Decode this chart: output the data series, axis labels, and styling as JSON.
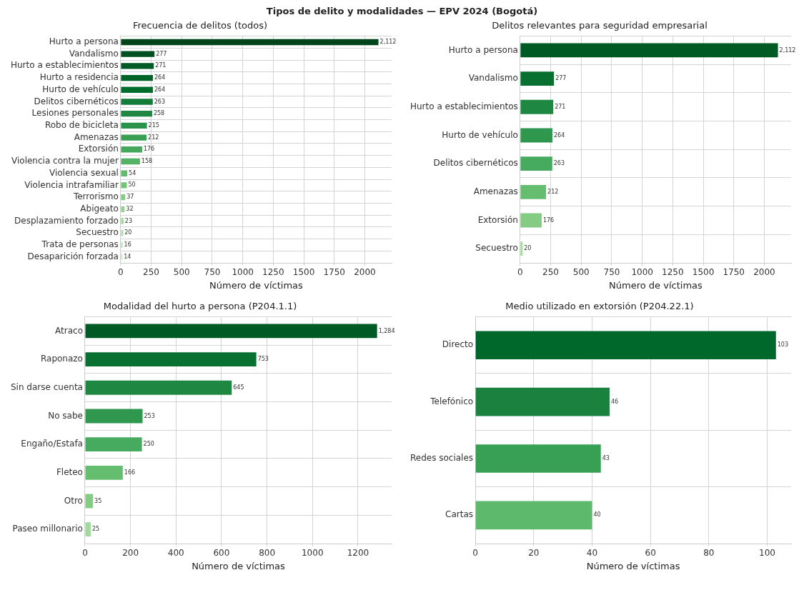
{
  "chart_data": [
    {
      "type": "bar",
      "orientation": "horizontal",
      "title": "Frecuencia de delitos (todos)",
      "xlabel": "Número de víctimas",
      "annotations": [
        "Tipos de delito y modalidades — EPV 2024 (Bogotá)"
      ],
      "grid": true,
      "legend": false,
      "xlim": [
        0,
        2220
      ],
      "xticks": [
        0,
        250,
        500,
        750,
        1000,
        1250,
        1500,
        1750,
        2000
      ],
      "categories": [
        "Hurto a persona",
        "Vandalismo",
        "Hurto a establecimientos",
        "Hurto a residencia",
        "Hurto de vehículo",
        "Delitos cibernéticos",
        "Lesiones personales",
        "Robo de bicicleta",
        "Amenazas",
        "Extorsión",
        "Violencia contra la mujer",
        "Violencia sexual",
        "Violencia intrafamiliar",
        "Terrorismo",
        "Abigeato",
        "Desplazamiento forzado",
        "Secuestro",
        "Trata de personas",
        "Desaparición forzada"
      ],
      "values": [
        2112,
        277,
        271,
        264,
        264,
        263,
        258,
        215,
        212,
        176,
        158,
        54,
        50,
        37,
        32,
        23,
        20,
        16,
        14
      ],
      "value_labels": [
        "2,112",
        "277",
        "271",
        "264",
        "264",
        "263",
        "258",
        "215",
        "212",
        "176",
        "158",
        "54",
        "50",
        "37",
        "32",
        "23",
        "20",
        "16",
        "14"
      ],
      "colors": [
        "#00441b",
        "#005022",
        "#005a26",
        "#006428",
        "#006d2c",
        "#137c39",
        "#1f8742",
        "#2a924a",
        "#389e53",
        "#45a85c",
        "#54b265",
        "#63bb6e",
        "#73c476",
        "#83cb82",
        "#93d38f",
        "#a0d99b",
        "#acdea7",
        "#b8e3b2",
        "#c4e8bd"
      ]
    },
    {
      "type": "bar",
      "orientation": "horizontal",
      "title": "Delitos relevantes para seguridad empresarial",
      "xlabel": "Número de víctimas",
      "grid": true,
      "legend": false,
      "xlim": [
        0,
        2220
      ],
      "xticks": [
        0,
        250,
        500,
        750,
        1000,
        1250,
        1500,
        1750,
        2000
      ],
      "categories": [
        "Hurto a persona",
        "Vandalismo",
        "Hurto a establecimientos",
        "Hurto de vehículo",
        "Delitos cibernéticos",
        "Amenazas",
        "Extorsión",
        "Secuestro"
      ],
      "values": [
        2112,
        277,
        271,
        264,
        263,
        212,
        176,
        20
      ],
      "value_labels": [
        "2,112",
        "277",
        "271",
        "264",
        "263",
        "212",
        "176",
        "20"
      ],
      "colors": [
        "#005a24",
        "#087131",
        "#1e8741",
        "#2f974e",
        "#46ab5e",
        "#65bd6f",
        "#84cc83",
        "#a6dba0"
      ]
    },
    {
      "type": "bar",
      "orientation": "horizontal",
      "title": "Modalidad del hurto a persona (P204.1.1)",
      "xlabel": "Número de víctimas",
      "grid": true,
      "legend": false,
      "xlim": [
        0,
        1348
      ],
      "xticks": [
        0,
        200,
        400,
        600,
        800,
        1000,
        1200
      ],
      "categories": [
        "Atraco",
        "Raponazo",
        "Sin darse cuenta",
        "No sabe",
        "Engaño/Estafa",
        "Fleteo",
        "Otro",
        "Paseo millonario"
      ],
      "values": [
        1284,
        753,
        645,
        253,
        250,
        166,
        35,
        25
      ],
      "value_labels": [
        "1,284",
        "753",
        "645",
        "253",
        "250",
        "166",
        "35",
        "25"
      ],
      "colors": [
        "#005a24",
        "#087131",
        "#1e8741",
        "#2f974e",
        "#46ab5e",
        "#65bd6f",
        "#84cc83",
        "#a0d99b"
      ]
    },
    {
      "type": "bar",
      "orientation": "horizontal",
      "title": "Medio utilizado en extorsión (P204.22.1)",
      "xlabel": "Número de víctimas",
      "grid": true,
      "legend": false,
      "xlim": [
        0,
        108.2
      ],
      "xticks": [
        0,
        20,
        40,
        60,
        80,
        100
      ],
      "categories": [
        "Directo",
        "Telefónico",
        "Redes sociales",
        "Cartas"
      ],
      "values": [
        103,
        46,
        43,
        40
      ],
      "value_labels": [
        "103",
        "46",
        "43",
        "40"
      ],
      "colors": [
        "#00682b",
        "#1a823e",
        "#37a055",
        "#5db96b"
      ]
    }
  ]
}
